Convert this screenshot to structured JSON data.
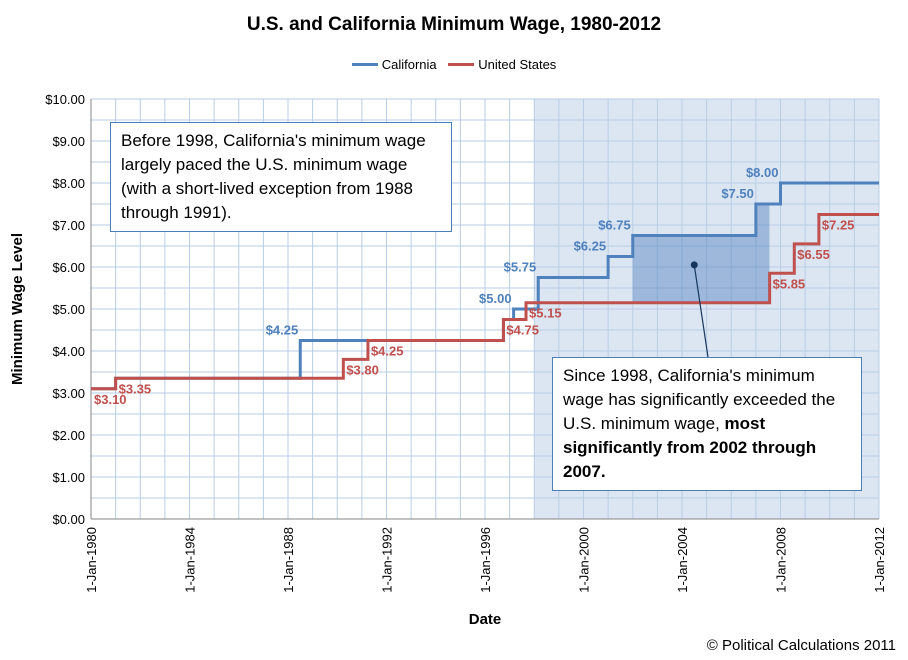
{
  "chart_data": {
    "type": "line",
    "step": true,
    "title": "U.S. and California Minimum Wage, 1980-2012",
    "xlabel": "Date",
    "ylabel": "Minimum Wage Level",
    "xlim": [
      "1980-01-01",
      "2012-01-01"
    ],
    "ylim": [
      0,
      10
    ],
    "yticks": [
      "$0.00",
      "$1.00",
      "$2.00",
      "$3.00",
      "$4.00",
      "$5.00",
      "$6.00",
      "$7.00",
      "$8.00",
      "$9.00",
      "$10.00"
    ],
    "xticks": [
      "1-Jan-1980",
      "1-Jan-1984",
      "1-Jan-1988",
      "1-Jan-1992",
      "1-Jan-1996",
      "1-Jan-2000",
      "1-Jan-2004",
      "1-Jan-2008",
      "1-Jan-2012"
    ],
    "grid": true,
    "legend": "top",
    "series": [
      {
        "name": "California",
        "color": "#4f81bd",
        "points": [
          [
            "1980-01-01",
            3.1
          ],
          [
            "1981-01-01",
            3.35
          ],
          [
            "1988-07-01",
            4.25
          ],
          [
            "1996-10-01",
            4.75
          ],
          [
            "1997-03-01",
            5.0
          ],
          [
            "1998-03-01",
            5.75
          ],
          [
            "2001-01-01",
            6.25
          ],
          [
            "2002-01-01",
            6.75
          ],
          [
            "2007-01-01",
            7.5
          ],
          [
            "2008-01-01",
            8.0
          ]
        ],
        "labels": [
          {
            "at": "1988-07-01",
            "text": "$4.25"
          },
          {
            "at": "1997-03-01",
            "text": "$5.00"
          },
          {
            "at": "1998-03-01",
            "text": "$5.75"
          },
          {
            "at": "2001-01-01",
            "text": "$6.25"
          },
          {
            "at": "2002-01-01",
            "text": "$6.75"
          },
          {
            "at": "2007-01-01",
            "text": "$7.50"
          },
          {
            "at": "2008-01-01",
            "text": "$8.00"
          }
        ]
      },
      {
        "name": "United States",
        "color": "#c0504d",
        "points": [
          [
            "1980-01-01",
            3.1
          ],
          [
            "1981-01-01",
            3.35
          ],
          [
            "1990-04-01",
            3.8
          ],
          [
            "1991-04-01",
            4.25
          ],
          [
            "1996-10-01",
            4.75
          ],
          [
            "1997-09-01",
            5.15
          ],
          [
            "2007-07-24",
            5.85
          ],
          [
            "2008-07-24",
            6.55
          ],
          [
            "2009-07-24",
            7.25
          ]
        ],
        "labels": [
          {
            "at": "1980-01-01",
            "text": "$3.10"
          },
          {
            "at": "1981-01-01",
            "text": "$3.35"
          },
          {
            "at": "1990-04-01",
            "text": "$3.80"
          },
          {
            "at": "1991-04-01",
            "text": "$4.25"
          },
          {
            "at": "1996-10-01",
            "text": "$4.75"
          },
          {
            "at": "1997-09-01",
            "text": "$5.15"
          },
          {
            "at": "2007-07-24",
            "text": "$5.85"
          },
          {
            "at": "2008-07-24",
            "text": "$6.55"
          },
          {
            "at": "2009-07-24",
            "text": "$7.25"
          }
        ]
      }
    ],
    "shaded_period": [
      "1998-01-01",
      "2012-01-01"
    ],
    "highlight_period": [
      "2002-01-01",
      "2007-07-24"
    ],
    "annotations": {
      "before": "Before 1998, California's minimum wage largely paced the U.S. minimum wage (with a short-lived exception from 1988 through 1991).",
      "since_plain": "Since 1998, California's minimum wage has significantly exceeded the U.S. minimum wage, ",
      "since_bold": "most significantly from 2002 through 2007."
    }
  },
  "credit": "© Political Calculations 2011"
}
